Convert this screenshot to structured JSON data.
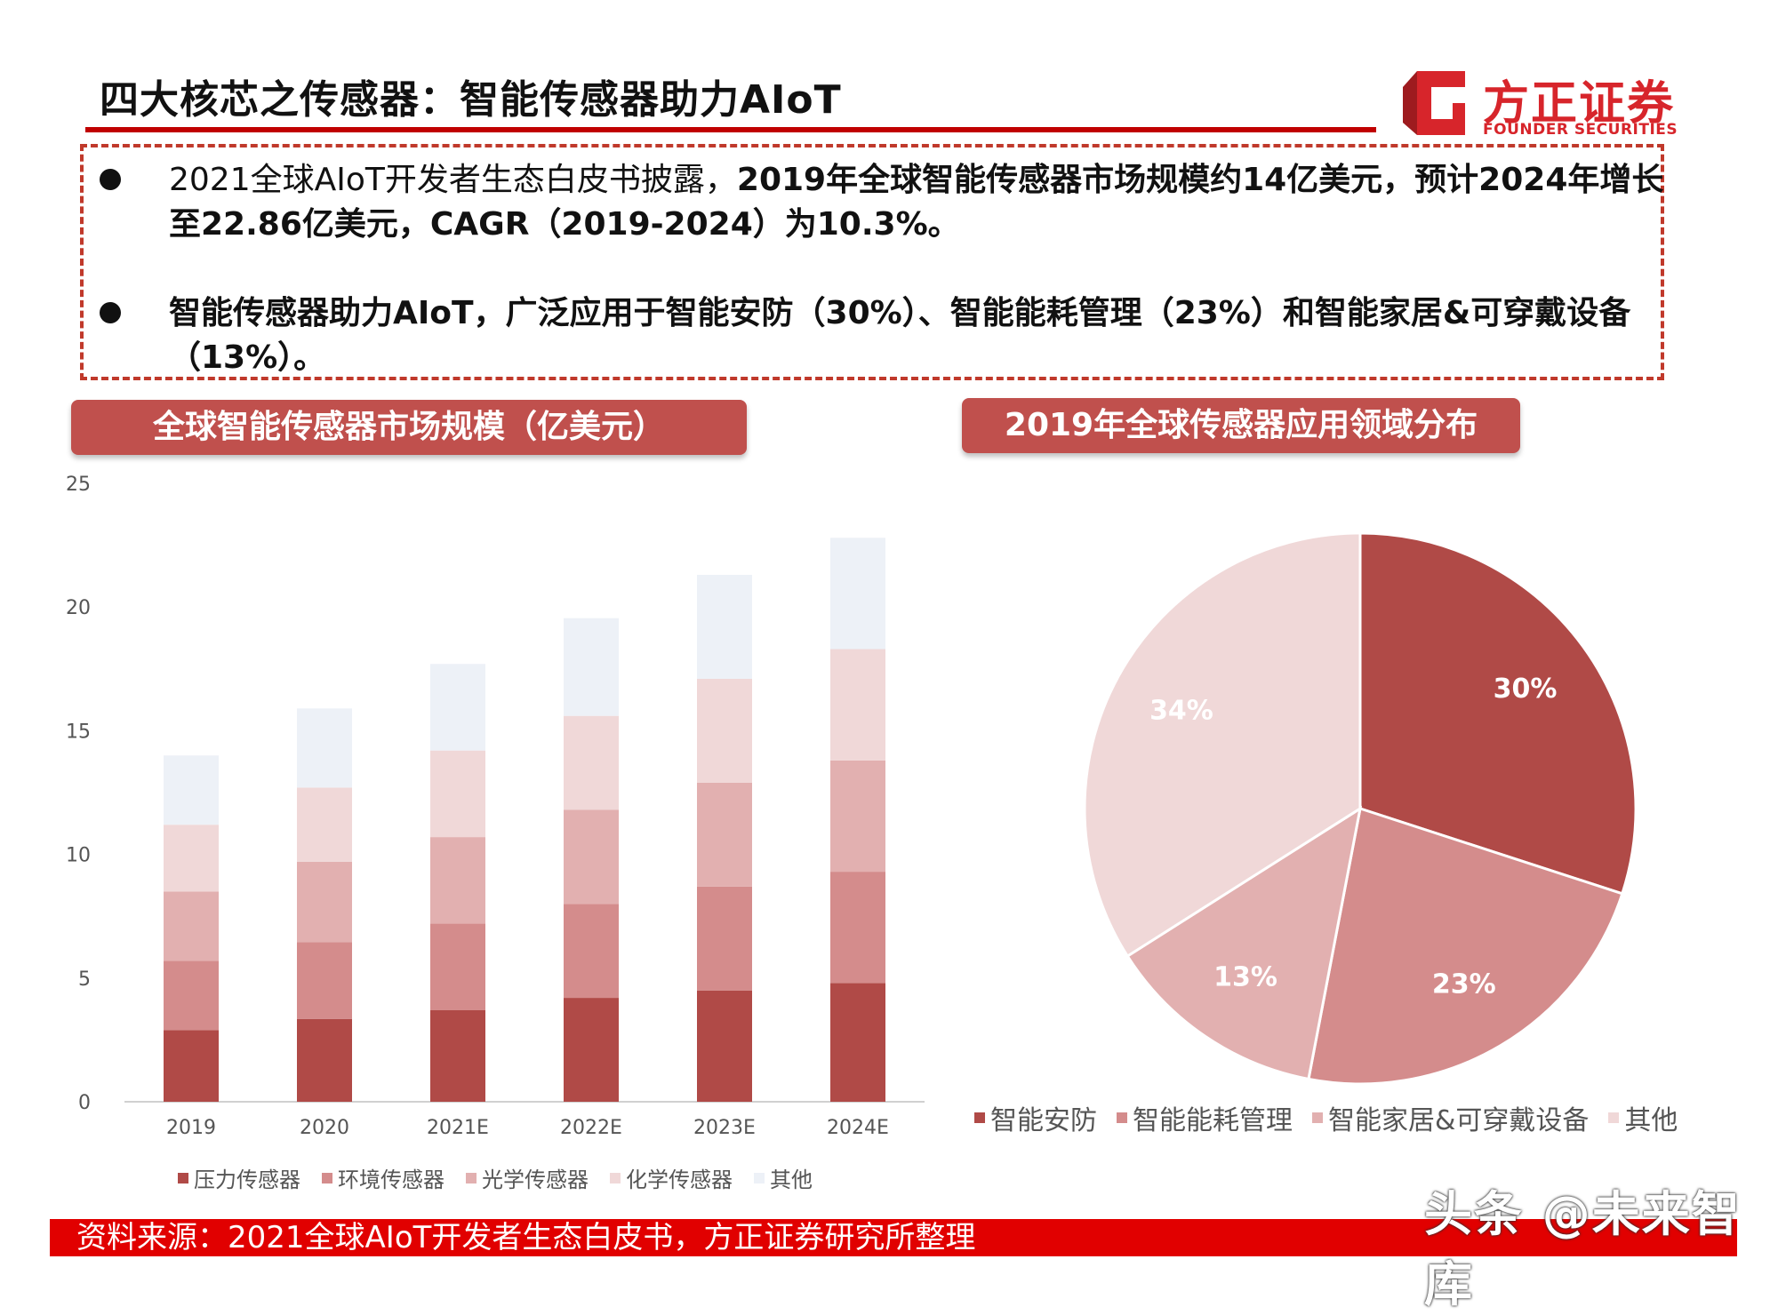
{
  "header": {
    "title": "四大核芯之传感器：智能传感器助力AIoT",
    "logo_cn": "方正证券",
    "logo_en": "FOUNDER SECURITIES"
  },
  "summary": {
    "bullet1_plain": "2021全球AIoT开发者生态白皮书披露，",
    "bullet1_bold": "2019年全球智能传感器市场规模约14亿美元，预计2024年增长至22.86亿美元，CAGR（2019-2024）为10.3%。",
    "bullet2": "智能传感器助力AIoT，广泛应用于智能安防（30%）、智能能耗管理（23%）和智能家居&可穿戴设备（13%）。"
  },
  "left_panel": {
    "title": "全球智能传感器市场规模（亿美元）"
  },
  "right_panel": {
    "title": "2019年全球传感器应用领域分布"
  },
  "footer": {
    "source": "资料来源：2021全球AIoT开发者生态白皮书，方正证券研究所整理",
    "watermark": "头条 @未来智库"
  },
  "colors": {
    "accent": "#c00000",
    "footer": "#e10000",
    "tag": "#c0504d"
  },
  "chart_data": [
    {
      "type": "bar",
      "stacked": true,
      "categories": [
        "2019",
        "2020",
        "2021E",
        "2022E",
        "2023E",
        "2024E"
      ],
      "series": [
        {
          "name": "压力传感器",
          "color": "#b04a47",
          "values": [
            2.9,
            3.35,
            3.7,
            4.2,
            4.5,
            4.8
          ]
        },
        {
          "name": "环境传感器",
          "color": "#d48c8c",
          "values": [
            2.8,
            3.1,
            3.5,
            3.8,
            4.2,
            4.5
          ]
        },
        {
          "name": "光学传感器",
          "color": "#e2b0b0",
          "values": [
            2.8,
            3.25,
            3.5,
            3.8,
            4.2,
            4.5
          ]
        },
        {
          "name": "化学传感器",
          "color": "#f0d8d8",
          "values": [
            2.7,
            3.0,
            3.5,
            3.8,
            4.2,
            4.5
          ]
        },
        {
          "name": "其他",
          "color": "#edf1f7",
          "values": [
            2.8,
            3.2,
            3.5,
            3.95,
            4.2,
            4.5
          ]
        }
      ],
      "yticks": [
        0,
        5,
        10,
        15,
        20,
        25
      ],
      "ylim": [
        0,
        25
      ],
      "legend": "bottom"
    },
    {
      "type": "pie",
      "labels": [
        "智能安防",
        "智能能耗管理",
        "智能家居&可穿戴设备",
        "其他"
      ],
      "values": [
        30,
        23,
        13,
        34
      ],
      "data_labels": [
        "30%",
        "23%",
        "13%",
        "34%"
      ],
      "colors": [
        "#b04a47",
        "#d48c8c",
        "#e2b0b0",
        "#f0d8d8"
      ],
      "legend": "bottom"
    }
  ]
}
